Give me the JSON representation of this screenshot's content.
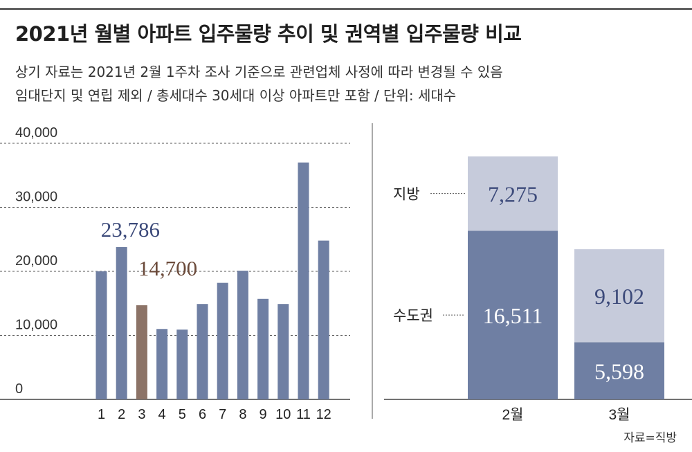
{
  "title": "2021년 월별 아파트 입주물량 추이 및 권역별 입주물량 비교",
  "subtitle_1": "상기 자료는 2021년 2월 1주차 조사 기준으로 관련업체 사정에 따라 변경될 수 있음",
  "subtitle_2": "임대단지 및 연립 제외 / 총세대수 30세대 이상 아파트만 포함 / 단위: 세대수",
  "source": "자료=직방",
  "colors": {
    "bar": "#6f7fa3",
    "highlight": "#8c7367",
    "light": "#c6cbdb",
    "label_blue": "#3c4a7a",
    "label_brown": "#6b4a3a"
  },
  "chart_data": [
    {
      "type": "bar",
      "categories": [
        "1",
        "2",
        "3",
        "4",
        "5",
        "6",
        "7",
        "8",
        "9",
        "10",
        "11",
        "12"
      ],
      "values": [
        20000,
        23786,
        14700,
        11000,
        10900,
        14900,
        18200,
        20100,
        15700,
        14900,
        37000,
        24800
      ],
      "highlight_index": 2,
      "ylim": [
        0,
        40000
      ],
      "yticks": [
        "0",
        "10,000",
        "20,000",
        "30,000",
        "40,000"
      ],
      "grid": true,
      "annotations": [
        {
          "category": "2",
          "text": "23,786"
        },
        {
          "category": "3",
          "text": "14,700"
        }
      ]
    },
    {
      "type": "bar",
      "stacked": true,
      "categories": [
        "2월",
        "3월"
      ],
      "series": [
        {
          "name": "수도권",
          "values": [
            16511,
            5598
          ],
          "labels": [
            "16,511",
            "5,598"
          ]
        },
        {
          "name": "지방",
          "values": [
            7275,
            9102
          ],
          "labels": [
            "7,275",
            "9,102"
          ]
        }
      ]
    }
  ]
}
